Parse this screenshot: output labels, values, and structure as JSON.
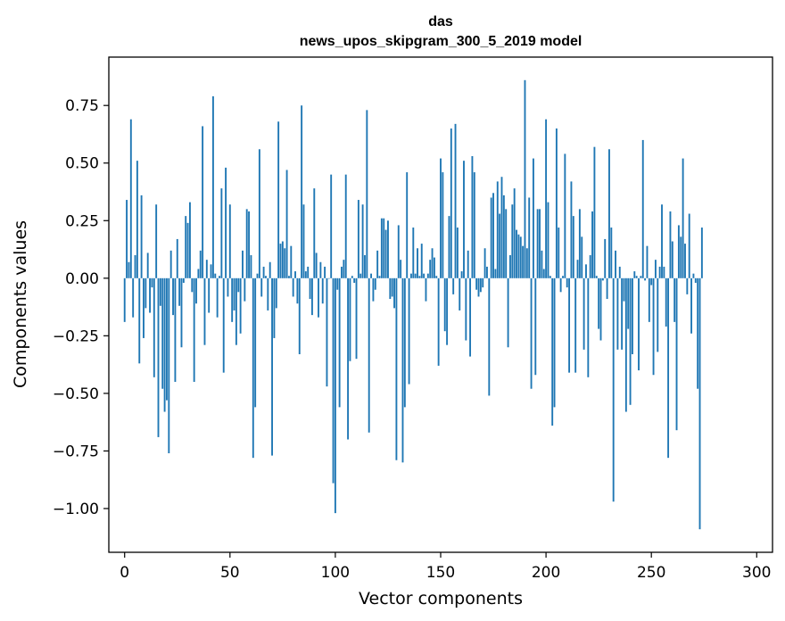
{
  "chart_data": {
    "type": "bar",
    "title": "das",
    "subtitle": "news_upos_skipgram_300_5_2019 model",
    "xlabel": "Vector components",
    "ylabel": "Components values",
    "xlim": [
      -7.5,
      307.5
    ],
    "ylim": [
      -1.19,
      0.96
    ],
    "xticks": [
      0,
      50,
      100,
      150,
      200,
      250,
      300
    ],
    "xtick_labels": [
      "0",
      "50",
      "100",
      "150",
      "200",
      "250",
      "300"
    ],
    "yticks": [
      0.75,
      0.5,
      0.25,
      0.0,
      -0.25,
      -0.5,
      -0.75,
      -1.0
    ],
    "ytick_labels": [
      "0.75",
      "0.50",
      "0.25",
      "0.00",
      "−0.25",
      "−0.50",
      "−0.75",
      "−1.00"
    ],
    "color": "#1f77b4",
    "values": [
      -0.19,
      0.34,
      0.07,
      0.69,
      -0.17,
      0.1,
      0.51,
      -0.37,
      0.36,
      -0.26,
      -0.13,
      0.11,
      -0.15,
      -0.04,
      -0.43,
      0.32,
      -0.69,
      -0.12,
      -0.48,
      -0.58,
      -0.53,
      -0.76,
      0.12,
      -0.16,
      -0.45,
      0.17,
      -0.12,
      -0.3,
      -0.02,
      0.27,
      0.24,
      0.33,
      -0.06,
      -0.45,
      -0.11,
      0.04,
      0.12,
      0.66,
      -0.29,
      0.08,
      -0.15,
      0.06,
      0.79,
      0.02,
      -0.17,
      0.01,
      0.39,
      -0.41,
      0.48,
      -0.08,
      0.32,
      -0.19,
      -0.14,
      -0.29,
      -0.06,
      -0.24,
      0.12,
      -0.1,
      0.3,
      0.29,
      0.1,
      -0.78,
      -0.56,
      0.02,
      0.56,
      -0.08,
      0.05,
      0.01,
      -0.14,
      0.07,
      -0.77,
      -0.26,
      -0.13,
      0.68,
      0.15,
      0.16,
      0.13,
      0.47,
      0.01,
      0.14,
      -0.08,
      0.03,
      -0.11,
      -0.33,
      0.75,
      0.32,
      0.03,
      0.05,
      -0.09,
      -0.16,
      0.39,
      0.11,
      -0.17,
      0.07,
      -0.11,
      0.05,
      -0.47,
      0.0,
      0.45,
      -0.89,
      -1.02,
      -0.05,
      -0.56,
      0.05,
      0.08,
      0.45,
      -0.7,
      -0.36,
      0.01,
      -0.02,
      -0.35,
      0.34,
      0.02,
      0.32,
      0.1,
      0.73,
      -0.67,
      0.02,
      -0.1,
      -0.05,
      0.12,
      0.01,
      0.26,
      0.26,
      0.21,
      0.25,
      -0.09,
      -0.08,
      -0.13,
      -0.79,
      0.23,
      0.08,
      -0.8,
      -0.56,
      0.46,
      -0.46,
      0.02,
      0.22,
      0.02,
      0.13,
      0.01,
      0.15,
      0.02,
      -0.1,
      0.02,
      0.08,
      0.13,
      0.09,
      0.01,
      -0.38,
      0.52,
      0.46,
      -0.23,
      -0.29,
      0.27,
      0.65,
      -0.07,
      0.67,
      0.22,
      -0.14,
      0.03,
      0.51,
      -0.27,
      0.12,
      -0.34,
      0.53,
      0.46,
      -0.05,
      -0.08,
      -0.06,
      -0.04,
      0.13,
      0.05,
      -0.51,
      0.35,
      0.37,
      0.04,
      0.42,
      0.28,
      0.44,
      0.36,
      0.3,
      -0.3,
      0.1,
      0.32,
      0.39,
      0.21,
      0.19,
      0.18,
      0.14,
      0.86,
      0.13,
      0.35,
      -0.48,
      0.52,
      -0.42,
      0.3,
      0.3,
      0.12,
      0.04,
      0.69,
      0.33,
      0.01,
      -0.64,
      -0.56,
      0.65,
      0.22,
      -0.06,
      0.01,
      0.54,
      -0.04,
      -0.41,
      0.42,
      0.27,
      -0.41,
      0.08,
      0.3,
      0.18,
      -0.31,
      0.06,
      -0.43,
      0.1,
      0.29,
      0.57,
      0.01,
      -0.22,
      -0.27,
      -0.01,
      0.17,
      -0.09,
      0.56,
      0.22,
      -0.97,
      0.12,
      -0.31,
      0.05,
      -0.31,
      -0.1,
      -0.58,
      -0.22,
      -0.55,
      -0.33,
      0.03,
      0.01,
      -0.4,
      0.01,
      0.6,
      -0.01,
      0.14,
      -0.19,
      -0.03,
      -0.42,
      0.08,
      -0.32,
      0.05,
      0.32,
      0.05,
      -0.21,
      -0.78,
      0.29,
      0.16,
      -0.19,
      -0.66,
      0.23,
      0.18,
      0.52,
      0.15,
      -0.07,
      0.28,
      -0.24,
      0.02,
      -0.02,
      -0.48,
      -1.09,
      0.22
    ]
  }
}
